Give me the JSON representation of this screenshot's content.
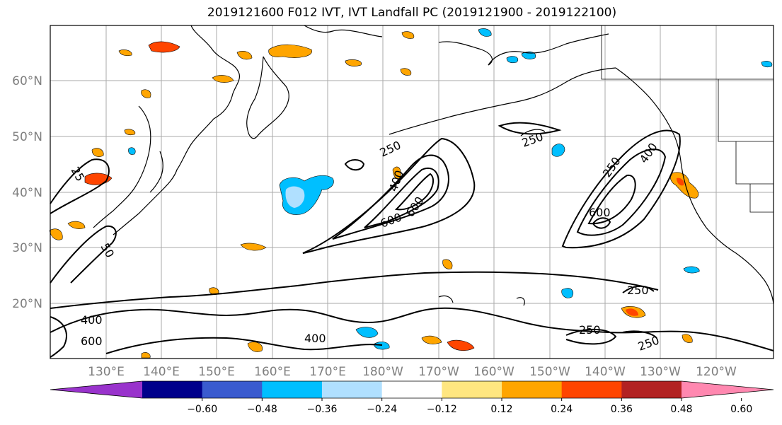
{
  "title": "2019121600 F012 IVT, IVT Landfall PC (2019121900 - 2019122100)",
  "lat_labels": [
    "60°N",
    "50°N",
    "40°N",
    "30°N",
    "20°N"
  ],
  "lon_labels": [
    "130°E",
    "140°E",
    "150°E",
    "160°E",
    "170°E",
    "180°W",
    "170°W",
    "160°W",
    "150°W",
    "140°W",
    "130°W",
    "120°W"
  ],
  "contour_labels": [
    "250",
    "400",
    "600",
    "600",
    "250",
    "250",
    "400",
    "250",
    "600",
    "250",
    "25",
    "50",
    "400",
    "600",
    "400",
    "250",
    "250"
  ],
  "colorbar": {
    "colors": [
      "#9933cc",
      "#00008b",
      "#3a5bcf",
      "#00bfff",
      "#b0e0ff",
      "#ffffff",
      "#ffe680",
      "#ffa500",
      "#ff4500",
      "#b22222",
      "#ff88b0"
    ],
    "tick_labels": [
      "−0.60",
      "−0.48",
      "−0.36",
      "−0.24",
      "−0.12",
      "0.12",
      "0.24",
      "0.36",
      "0.48",
      "0.60"
    ]
  }
}
